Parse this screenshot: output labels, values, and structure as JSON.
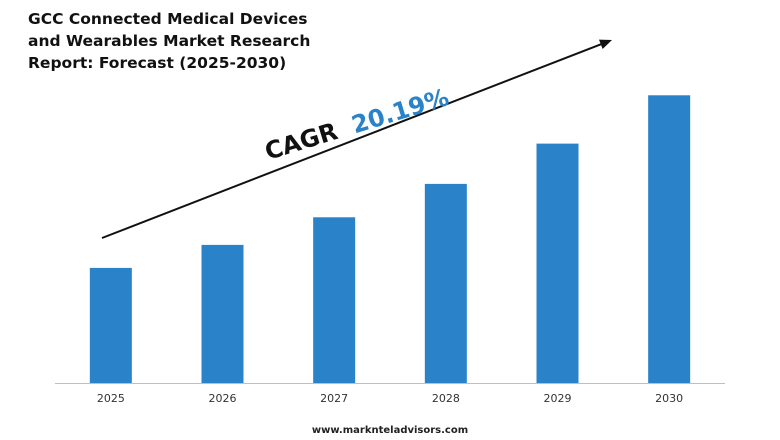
{
  "chart_data": {
    "type": "bar",
    "title_lines": [
      "GCC Connected Medical Devices",
      "and Wearables Market Research",
      "Report: Forecast (2025-2030)"
    ],
    "categories": [
      "2025",
      "2026",
      "2027",
      "2028",
      "2029",
      "2030"
    ],
    "values": [
      1.0,
      1.2,
      1.44,
      1.73,
      2.08,
      2.5
    ],
    "value_note": "relative bar heights estimated (no y-axis shown)",
    "ylim": [
      0,
      2.85
    ],
    "xlabel": "",
    "ylabel": "",
    "grid": false,
    "annotation": {
      "prefix": "CAGR",
      "value": "20.19%"
    }
  },
  "colors": {
    "bar": "#2a83c9",
    "annotation_value": "#2a83c9",
    "annotation_prefix": "#111111",
    "arrow": "#111111",
    "axis": "#bfbfbf"
  },
  "footer": {
    "url": "www.marknteladvisors.com"
  }
}
